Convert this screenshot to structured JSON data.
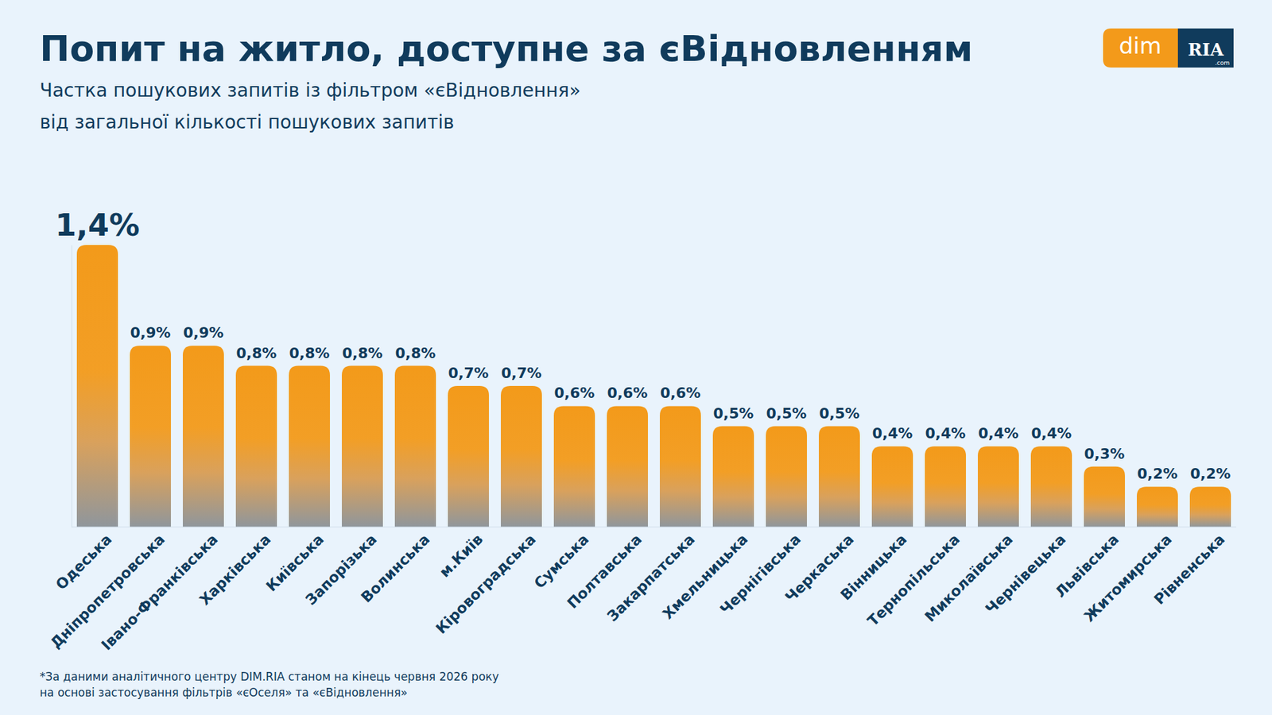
{
  "chart_data": {
    "type": "bar",
    "title": "Попит на житло, доступне за єВідновленням",
    "subtitle": [
      "Частка пошукових запитів із фільтром «єВідновлення»",
      "від загальної кількості пошукових запитів"
    ],
    "categories": [
      "Одеська",
      "Дніпропетровська",
      "Івано-Франківська",
      "Харківська",
      "Київська",
      "Запорізька",
      "Волинська",
      "м.Київ",
      "Кіровоградська",
      "Сумська",
      "Полтавська",
      "Закарпатська",
      "Хмельницька",
      "Чернігівська",
      "Черкаська",
      "Вінницька",
      "Тернопільська",
      "Миколаївська",
      "Чернівецька",
      "Львівська",
      "Житомирська",
      "Рівненська"
    ],
    "values": [
      1.4,
      0.9,
      0.9,
      0.8,
      0.8,
      0.8,
      0.8,
      0.7,
      0.7,
      0.6,
      0.6,
      0.6,
      0.5,
      0.5,
      0.5,
      0.4,
      0.4,
      0.4,
      0.4,
      0.3,
      0.2,
      0.2
    ],
    "value_labels": [
      "1,4%",
      "0,9%",
      "0,9%",
      "0,8%",
      "0,8%",
      "0,8%",
      "0,8%",
      "0,7%",
      "0,7%",
      "0,6%",
      "0,6%",
      "0,6%",
      "0,5%",
      "0,5%",
      "0,5%",
      "0,4%",
      "0,4%",
      "0,4%",
      "0,4%",
      "0,3%",
      "0,2%",
      "0,2%"
    ],
    "color": "#f39a1a",
    "ylim": [
      0,
      1.4
    ],
    "data_labels": true,
    "tick_labels": "x",
    "grid": false,
    "footnote": [
      "*За даними аналітичного центру DIM.RIA станом на кінець червня 2026 року",
      "на основі застосування фільтрів «єОселя» та «єВідновлення»"
    ],
    "logo": [
      "dim",
      "RIA",
      ".com"
    ]
  }
}
